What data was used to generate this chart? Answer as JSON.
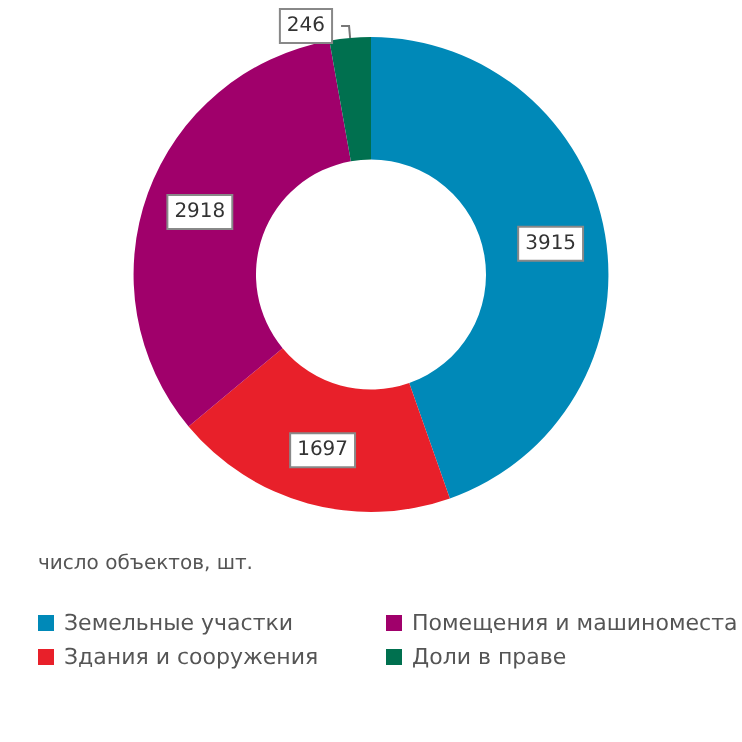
{
  "chart_data": {
    "type": "donut",
    "categories": [
      "Земельные участки",
      "Здания и сооружения",
      "Помещения и машиноместа",
      "Доли в праве"
    ],
    "values": [
      3915,
      1697,
      2918,
      246
    ],
    "colors": [
      "#0089b8",
      "#e8202a",
      "#a0006b",
      "#00704f"
    ],
    "data_labels": true,
    "legend": "bottom",
    "annotations": [
      "число объектов, шт."
    ]
  }
}
